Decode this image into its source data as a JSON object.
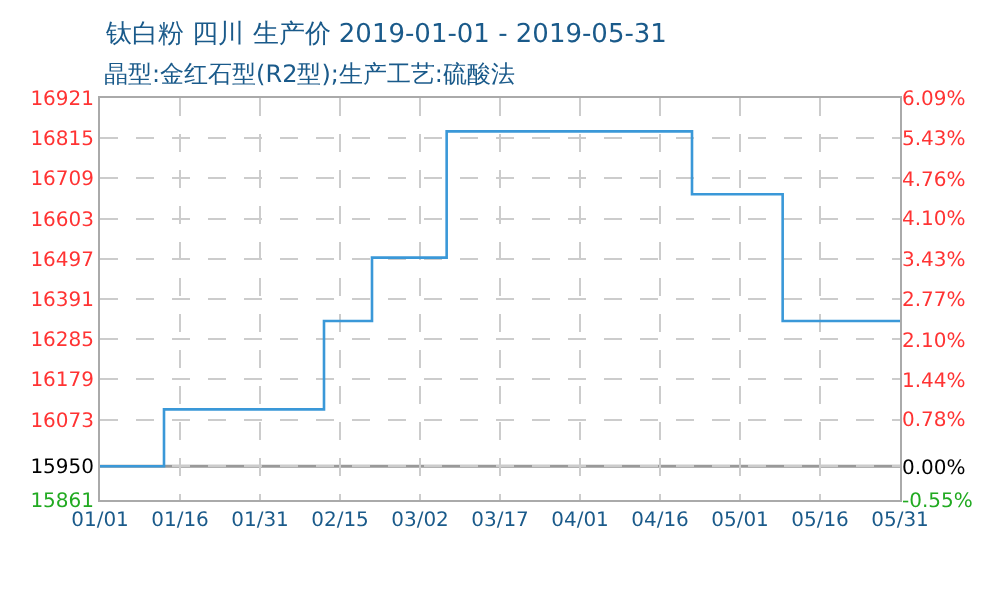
{
  "chart_data": {
    "type": "step",
    "title": "钛白粉 四川 生产价 2019-01-01 - 2019-05-31",
    "subtitle": "晶型:金红石型(R2型);生产工艺:硫酸法",
    "x": [
      "2019-01-01",
      "2019-01-13",
      "2019-02-12",
      "2019-02-21",
      "2019-03-07",
      "2019-04-22",
      "2019-05-09",
      "2019-05-31"
    ],
    "series": [
      {
        "color": "#3a98d8",
        "values": [
          15950,
          16100,
          16333,
          16500,
          16833,
          16667,
          16333,
          16333
        ]
      }
    ],
    "xlim": [
      "2019-01-01",
      "2019-05-31"
    ],
    "xticks": [
      {
        "value": "2019-01-01",
        "label": "01/01"
      },
      {
        "value": "2019-01-16",
        "label": "01/16"
      },
      {
        "value": "2019-01-31",
        "label": "01/31"
      },
      {
        "value": "2019-02-15",
        "label": "02/15"
      },
      {
        "value": "2019-03-02",
        "label": "03/02"
      },
      {
        "value": "2019-03-17",
        "label": "03/17"
      },
      {
        "value": "2019-04-01",
        "label": "04/01"
      },
      {
        "value": "2019-04-16",
        "label": "04/16"
      },
      {
        "value": "2019-05-01",
        "label": "05/01"
      },
      {
        "value": "2019-05-16",
        "label": "05/16"
      },
      {
        "value": "2019-05-31",
        "label": "05/31"
      }
    ],
    "ylim": [
      15861,
      16921
    ],
    "yticks": [
      15861,
      15950,
      16073,
      16179,
      16285,
      16391,
      16497,
      16603,
      16709,
      16815,
      16921
    ],
    "y2lim": [
      -0.55,
      6.09
    ],
    "y2ticks": [
      {
        "value": -0.55,
        "label": "-0.55%"
      },
      {
        "value": 0,
        "label": "0.00%"
      },
      {
        "value": 0.78,
        "label": "0.78%"
      },
      {
        "value": 1.44,
        "label": "1.44%"
      },
      {
        "value": 2.1,
        "label": "2.10%"
      },
      {
        "value": 2.77,
        "label": "2.77%"
      },
      {
        "value": 3.43,
        "label": "3.43%"
      },
      {
        "value": 4.1,
        "label": "4.10%"
      },
      {
        "value": 4.76,
        "label": "4.76%"
      },
      {
        "value": 5.43,
        "label": "5.43%"
      },
      {
        "value": 6.09,
        "label": "6.09%"
      }
    ],
    "ref_lines": [
      {
        "axis": "y",
        "value": 15950,
        "color": "#999999"
      }
    ],
    "grid": true,
    "marker": "none",
    "line_style": "solid"
  }
}
